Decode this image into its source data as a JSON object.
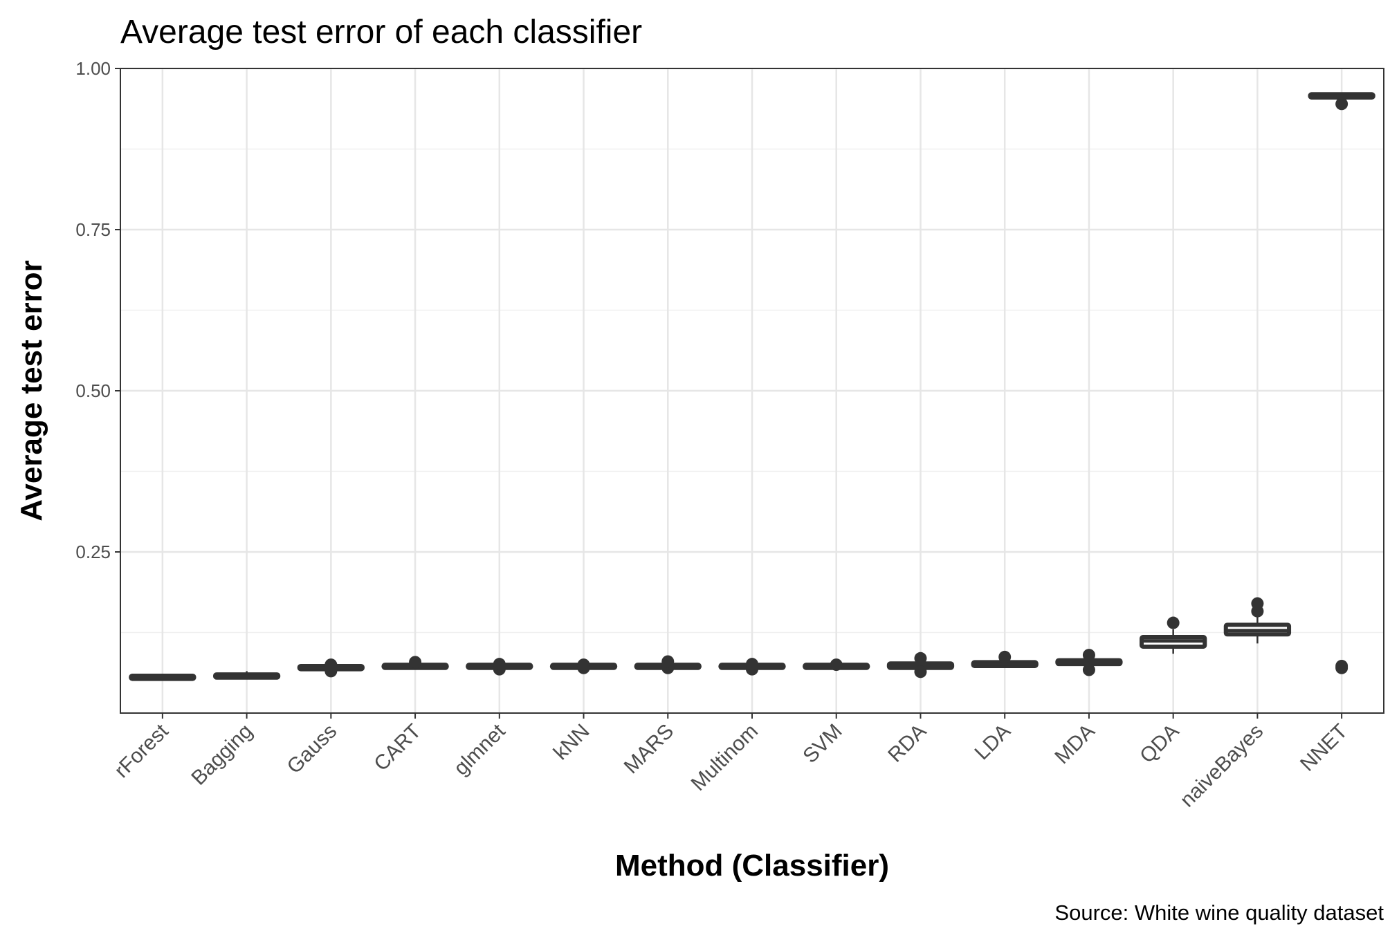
{
  "chart_data": {
    "type": "box",
    "title": "Average test error of each classifier",
    "xlabel": "Method (Classifier)",
    "ylabel": "Average test error",
    "caption": "Source: White wine quality dataset",
    "ylim": [
      0.0,
      1.0
    ],
    "yticks": [
      "0.25",
      "0.50",
      "0.75",
      "1.00"
    ],
    "ytick_values": [
      0.25,
      0.5,
      0.75,
      1.0
    ],
    "grid": true,
    "legend": "none",
    "categories": [
      "rForest",
      "Bagging",
      "Gauss",
      "CART",
      "glmnet",
      "kNN",
      "MARS",
      "Multinom",
      "SVM",
      "RDA",
      "LDA",
      "MDA",
      "QDA",
      "naiveBayes",
      "NNET"
    ],
    "boxes": [
      {
        "min": 0.052,
        "q1": 0.053,
        "median": 0.055,
        "q3": 0.058,
        "max": 0.06,
        "outliers": []
      },
      {
        "min": 0.053,
        "q1": 0.055,
        "median": 0.057,
        "q3": 0.06,
        "max": 0.065,
        "outliers": []
      },
      {
        "min": 0.066,
        "q1": 0.068,
        "median": 0.07,
        "q3": 0.073,
        "max": 0.075,
        "outliers": [
          0.065,
          0.068,
          0.075
        ]
      },
      {
        "min": 0.069,
        "q1": 0.07,
        "median": 0.072,
        "q3": 0.075,
        "max": 0.077,
        "outliers": [
          0.079
        ]
      },
      {
        "min": 0.068,
        "q1": 0.07,
        "median": 0.072,
        "q3": 0.075,
        "max": 0.077,
        "outliers": [
          0.068,
          0.076
        ]
      },
      {
        "min": 0.069,
        "q1": 0.07,
        "median": 0.072,
        "q3": 0.075,
        "max": 0.076,
        "outliers": [
          0.07,
          0.075
        ]
      },
      {
        "min": 0.069,
        "q1": 0.07,
        "median": 0.072,
        "q3": 0.075,
        "max": 0.077,
        "outliers": [
          0.07,
          0.08
        ]
      },
      {
        "min": 0.068,
        "q1": 0.07,
        "median": 0.072,
        "q3": 0.075,
        "max": 0.077,
        "outliers": [
          0.068,
          0.076
        ]
      },
      {
        "min": 0.069,
        "q1": 0.07,
        "median": 0.072,
        "q3": 0.075,
        "max": 0.076,
        "outliers": [
          0.075
        ]
      },
      {
        "min": 0.068,
        "q1": 0.07,
        "median": 0.073,
        "q3": 0.077,
        "max": 0.08,
        "outliers": [
          0.064,
          0.085
        ]
      },
      {
        "min": 0.072,
        "q1": 0.073,
        "median": 0.076,
        "q3": 0.079,
        "max": 0.081,
        "outliers": [
          0.087
        ]
      },
      {
        "min": 0.074,
        "q1": 0.076,
        "median": 0.078,
        "q3": 0.082,
        "max": 0.085,
        "outliers": [
          0.067,
          0.09
        ]
      },
      {
        "min": 0.092,
        "q1": 0.103,
        "median": 0.112,
        "q3": 0.118,
        "max": 0.13,
        "outliers": [
          0.14
        ]
      },
      {
        "min": 0.108,
        "q1": 0.122,
        "median": 0.128,
        "q3": 0.137,
        "max": 0.15,
        "outliers": [
          0.158,
          0.17
        ]
      },
      {
        "min": 0.952,
        "q1": 0.955,
        "median": 0.957,
        "q3": 0.96,
        "max": 0.962,
        "outliers": [
          0.945,
          0.07,
          0.073
        ]
      }
    ]
  }
}
